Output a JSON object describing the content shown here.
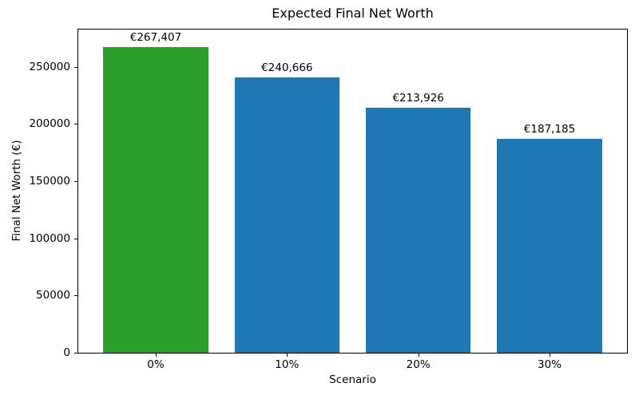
{
  "figure": {
    "background": "#ffffff"
  },
  "chart_data": {
    "type": "bar",
    "title": "Expected Final Net Worth",
    "xlabel": "Scenario",
    "ylabel": "Final Net Worth (€)",
    "categories": [
      "0%",
      "10%",
      "20%",
      "30%"
    ],
    "values": [
      267407,
      240666,
      213926,
      187185
    ],
    "value_labels": [
      "€267,407",
      "€240,666",
      "€213,926",
      "€187,185"
    ],
    "bar_colors": [
      "#2ca02c",
      "#1f77b4",
      "#1f77b4",
      "#1f77b4"
    ],
    "highlight_color": "#2ca02c",
    "default_bar_color": "#1f77b4",
    "yticks": [
      0,
      50000,
      100000,
      150000,
      200000,
      250000
    ],
    "ytick_labels": [
      "0",
      "50000",
      "100000",
      "150000",
      "200000",
      "250000"
    ],
    "ylim": [
      0,
      282600
    ],
    "xlim": [
      -0.59,
      3.59
    ],
    "bar_width": 0.8,
    "grid": false,
    "legend": "none",
    "spine_color": "#000000",
    "text_color": "#000000"
  }
}
